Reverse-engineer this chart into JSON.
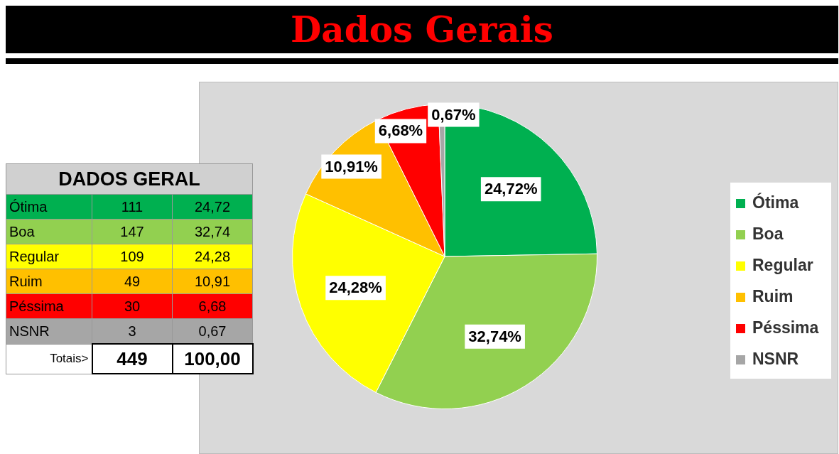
{
  "chart_data": [
    {
      "type": "pie",
      "title": "Dados Gerais",
      "categories": [
        "Ótima",
        "Boa",
        "Regular",
        "Ruim",
        "Péssima",
        "NSNR"
      ],
      "values": [
        24.72,
        32.74,
        24.28,
        10.91,
        6.68,
        0.67
      ],
      "colors": [
        "#00b050",
        "#92d050",
        "#ffff00",
        "#ffc000",
        "#ff0000",
        "#a6a6a6"
      ],
      "value_labels": [
        "24,72%",
        "32,74%",
        "24,28%",
        "10,91%",
        "6,68%",
        "0,67%"
      ],
      "legend": "right"
    },
    {
      "type": "other",
      "title": "DADOS GERAL",
      "categories": [
        "Ótima",
        "Boa",
        "Regular",
        "Ruim",
        "Péssima",
        "NSNR"
      ],
      "colors": [
        "#00b050",
        "#92d050",
        "#ffff00",
        "#ffc000",
        "#ff0000",
        "#a6a6a6"
      ],
      "series": [
        {
          "values": [
            111,
            147,
            109,
            49,
            30,
            3
          ],
          "colors": [
            "#00b050",
            "#92d050",
            "#ffff00",
            "#ffc000",
            "#ff0000",
            "#a6a6a6"
          ]
        },
        {
          "values": [
            24.72,
            32.74,
            24.28,
            10.91,
            6.68,
            0.67
          ],
          "value_labels": [
            "24,72",
            "32,74",
            "24,28",
            "10,91",
            "6,68",
            "0,67"
          ],
          "colors": [
            "#00b050",
            "#92d050",
            "#ffff00",
            "#ffc000",
            "#ff0000",
            "#a6a6a6"
          ]
        }
      ],
      "data_labels": true,
      "annotations": [
        "Totais>",
        "449",
        "100,00"
      ]
    }
  ]
}
